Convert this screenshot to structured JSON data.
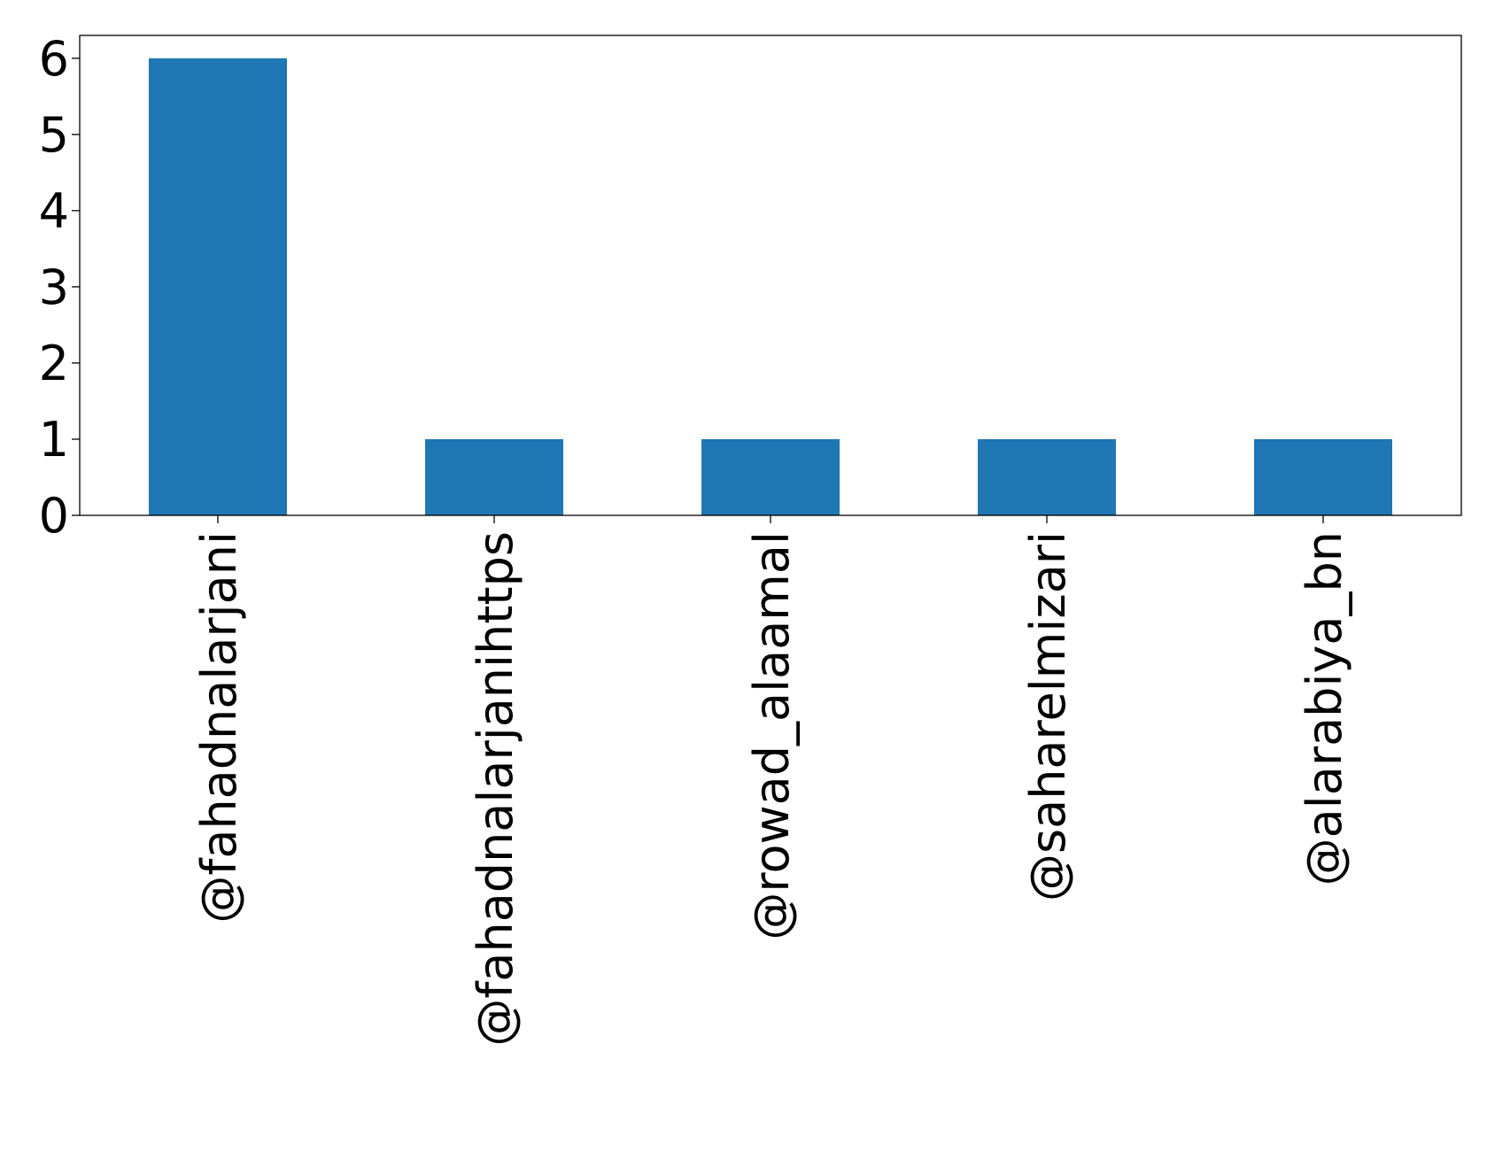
{
  "chart_data": {
    "type": "bar",
    "categories": [
      "@fahadnalarjani",
      "@fahadnalarjanihttps",
      "@rowad_alaamal",
      "@saharelmizari",
      "@alarabiya_bn"
    ],
    "values": [
      6,
      1,
      1,
      1,
      1
    ],
    "title": "",
    "xlabel": "",
    "ylabel": "",
    "ylim": [
      0,
      6.3
    ],
    "yticks": [
      0,
      1,
      2,
      3,
      4,
      5,
      6
    ],
    "grid": false,
    "legend": "none",
    "bar_color": "#1f77b4",
    "x_tick_rotation": "vertical"
  }
}
